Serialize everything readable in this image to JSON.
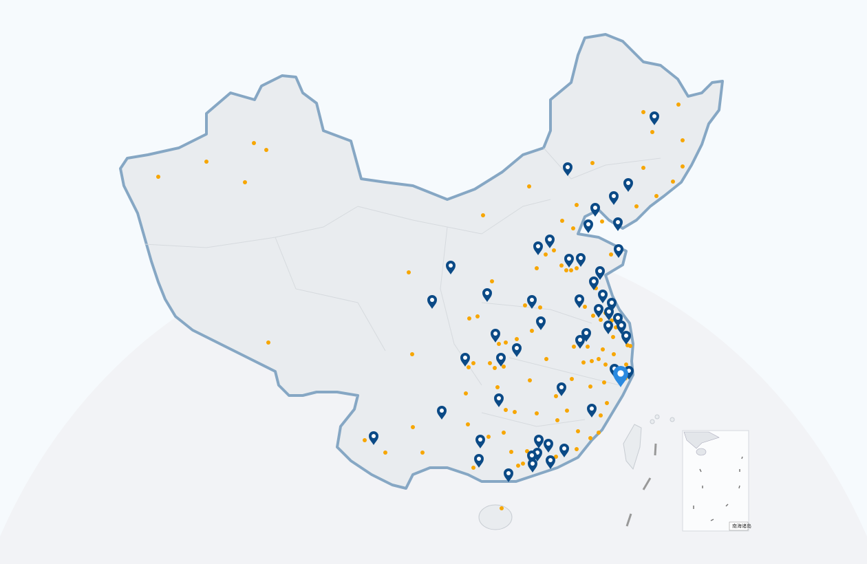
{
  "map": {
    "region": "China",
    "colors": {
      "land": "#e9ecef",
      "border": "#86a7c4",
      "marker": "#0b4a86",
      "marker_highlight": "#2b8ae0",
      "city_dot": "#f7a600"
    },
    "icons": {
      "marker": "map-pin-icon",
      "dot": "city-dot"
    },
    "marker_count": 51,
    "highlighted_marker": 1,
    "inset": {
      "label": "南海诸岛"
    }
  }
}
